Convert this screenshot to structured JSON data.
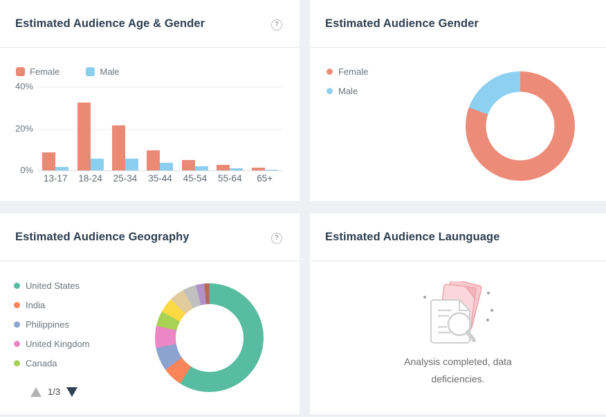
{
  "panels": {
    "age_gender": {
      "title": "Estimated Audience Age & Gender",
      "help_icon": "?"
    },
    "gender": {
      "title": "Estimated Audience Gender"
    },
    "geography": {
      "title": "Estimated Audience Geography",
      "help_icon": "?",
      "pagination": {
        "page": "1/3",
        "up_color": "#b3b3b3",
        "down_color": "#2e4156"
      }
    },
    "language": {
      "title": "Estimated Audience Launguage",
      "empty_state": {
        "line1": "Analysis completed, data",
        "line2": "deficiencies."
      }
    }
  },
  "chart_data": [
    {
      "id": "age_gender",
      "type": "bar",
      "title": "Estimated Audience Age & Gender",
      "categories": [
        "13-17",
        "18-24",
        "25-34",
        "35-44",
        "45-54",
        "55-64",
        "65+"
      ],
      "series": [
        {
          "name": "Female",
          "color": "#EA8A75",
          "values": [
            8.5,
            32.3,
            21.6,
            9.5,
            5.0,
            2.5,
            1.2
          ]
        },
        {
          "name": "Male",
          "color": "#8BCEEE",
          "values": [
            1.5,
            5.6,
            5.6,
            3.5,
            2.0,
            1.0,
            0.5
          ]
        }
      ],
      "xlabel": "",
      "ylabel": "",
      "ylim": [
        0,
        40
      ],
      "y_ticks": [
        {
          "label": "40%",
          "value": 40
        },
        {
          "label": "20%",
          "value": 20
        },
        {
          "label": "0%",
          "value": 0
        }
      ],
      "grid": true,
      "legend_position": "top"
    },
    {
      "id": "gender",
      "type": "pie",
      "donut": true,
      "title": "Estimated Audience Gender",
      "legend_position": "left",
      "slices": [
        {
          "label": "Female",
          "value": 80.5,
          "color": "#EC8C78"
        },
        {
          "label": "Male",
          "value": 19.5,
          "color": "#8DD0F0"
        }
      ]
    },
    {
      "id": "geography",
      "type": "pie",
      "donut": true,
      "title": "Estimated Audience Geography",
      "legend_position": "left",
      "legend_page": "1/3",
      "slices": [
        {
          "label": "United States",
          "value": 59.0,
          "color": "#57BCA0"
        },
        {
          "label": "India",
          "value": 6.0,
          "color": "#FB8558"
        },
        {
          "label": "Philippines",
          "value": 7.0,
          "color": "#8CA3D0"
        },
        {
          "label": "United Kingdom",
          "value": 6.5,
          "color": "#EC86C4"
        },
        {
          "label": "Canada",
          "value": 4.5,
          "color": "#A7D254"
        },
        {
          "label": "",
          "value": 4.5,
          "color": "#FBD942"
        },
        {
          "label": "",
          "value": 4.5,
          "color": "#E2CB9D"
        },
        {
          "label": "",
          "value": 4.0,
          "color": "#C0C0C0"
        },
        {
          "label": "",
          "value": 2.5,
          "color": "#B392C9"
        },
        {
          "label": "",
          "value": 1.5,
          "color": "#B9695A"
        }
      ]
    }
  ]
}
